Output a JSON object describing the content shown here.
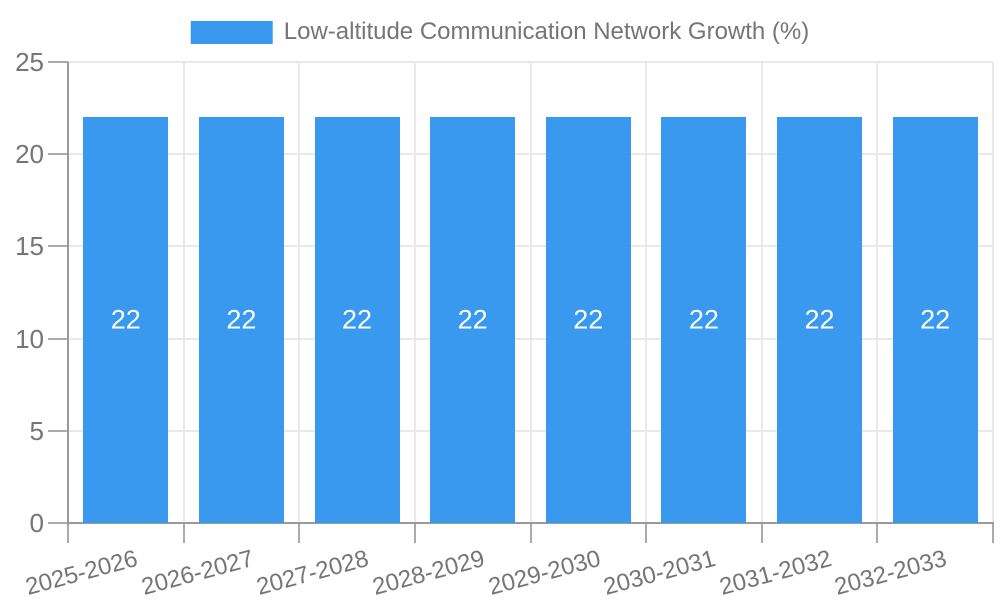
{
  "legend": {
    "label": "Low-altitude Communication Network Growth (%)"
  },
  "chart_data": {
    "type": "bar",
    "title": "Low-altitude Communication Network Growth (%)",
    "categories": [
      "2025-2026",
      "2026-2027",
      "2027-2028",
      "2028-2029",
      "2029-2030",
      "2030-2031",
      "2031-2032",
      "2032-2033"
    ],
    "values": [
      22,
      22,
      22,
      22,
      22,
      22,
      22,
      22
    ],
    "xlabel": "",
    "ylabel": "",
    "ylim": [
      0,
      25
    ],
    "yticks": [
      0,
      5,
      10,
      15,
      20,
      25
    ],
    "grid": true,
    "legend_position": "top",
    "bar_color": "#3899ee",
    "value_label_color": "#ffffff",
    "tick_label_color": "#757575",
    "grid_color": "#e9e9e9",
    "axis_color": "#9a9a9a"
  }
}
